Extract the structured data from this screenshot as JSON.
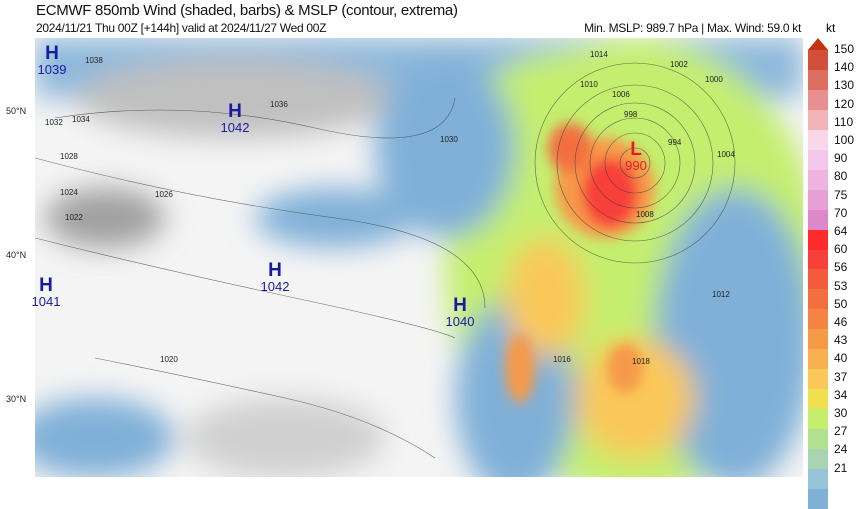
{
  "title": "ECMWF 850mb Wind (shaded, barbs) & MSLP (contour, extrema)",
  "subtitle": "2024/11/21 Thu 00Z [+144h] valid at 2024/11/27 Wed 00Z",
  "stats": "Min. MSLP: 989.7 hPa | Max. Wind: 59.0 kt",
  "colorbar": {
    "unit": "kt",
    "levels": [
      "150",
      "140",
      "130",
      "120",
      "110",
      "100",
      "90",
      "80",
      "75",
      "70",
      "64",
      "60",
      "56",
      "53",
      "50",
      "46",
      "43",
      "40",
      "37",
      "34",
      "30",
      "27",
      "24",
      "21"
    ],
    "colors": [
      "#c8320a",
      "#d0503c",
      "#dc6e60",
      "#e89090",
      "#f0b4b8",
      "#f8d8e8",
      "#f4c8ec",
      "#eeb4e0",
      "#e6a0d6",
      "#de88cc",
      "#ff2a2a",
      "#f8403a",
      "#f45a3c",
      "#f27040",
      "#f48444",
      "#f69a48",
      "#f8b050",
      "#fac858",
      "#f0e050",
      "#c4ee6e",
      "#b0e090",
      "#a8d4b0",
      "#98c4d8",
      "#80b0d8"
    ]
  },
  "latitudes": [
    "50°N",
    "40°N",
    "30°N"
  ],
  "extrema": [
    {
      "type": "H",
      "value": "1039",
      "color": "#1a1aa0"
    },
    {
      "type": "H",
      "value": "1042",
      "color": "#1a1aa0"
    },
    {
      "type": "H",
      "value": "1042",
      "color": "#1a1aa0"
    },
    {
      "type": "H",
      "value": "1040",
      "color": "#1a1aa0"
    },
    {
      "type": "H",
      "value": "1041",
      "color": "#1a1aa0"
    },
    {
      "type": "L",
      "value": "990",
      "color": "#e02020"
    }
  ],
  "contour_labels": [
    "1038",
    "1032",
    "1034",
    "1036",
    "1028",
    "1026",
    "1024",
    "1022",
    "1030",
    "1014",
    "1010",
    "1006",
    "1002",
    "1000",
    "998",
    "994",
    "1004",
    "1008",
    "1012",
    "1016",
    "1018",
    "1020"
  ]
}
